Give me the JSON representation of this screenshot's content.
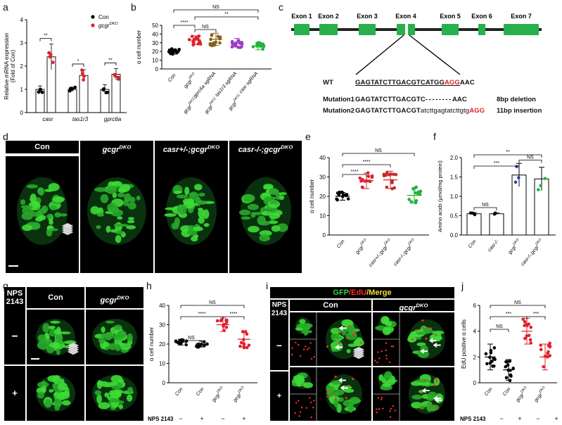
{
  "colors": {
    "con": "#000000",
    "gcgr": "#e0212b",
    "gprc6a": "#8b5e1a",
    "tas1r3": "#9b3cc4",
    "casr": "#22b33a",
    "blue": "#2b3fb0",
    "exon": "#27b04b"
  },
  "panel_a": {
    "letter": "a",
    "ylabel": "Relative mRNA expression\n(Fold of Con)",
    "legend": [
      {
        "label": "Con"
      },
      {
        "label": "gcgr",
        "sup": "DKO"
      }
    ],
    "sig": [
      "**",
      "*",
      "**"
    ],
    "chart_data": {
      "type": "bar",
      "categories": [
        "casr",
        "tas1r3",
        "gprc6a"
      ],
      "series": [
        {
          "name": "Con",
          "values": [
            1.0,
            1.0,
            1.0
          ],
          "errors": [
            0.15,
            0.1,
            0.2
          ]
        },
        {
          "name": "gcgrDKO",
          "values": [
            2.4,
            1.6,
            1.65
          ],
          "errors": [
            0.55,
            0.25,
            0.25
          ]
        }
      ],
      "ylim": [
        0,
        4
      ],
      "yticks": [
        0,
        1,
        2,
        3,
        4
      ]
    }
  },
  "panel_b": {
    "letter": "b",
    "ylabel": "α cell number",
    "sig": [
      "****",
      "NS",
      "NS",
      "**"
    ],
    "xlabels": [
      {
        "parts": [
          [
            "Con",
            ""
          ]
        ]
      },
      {
        "parts": [
          [
            "gcgr",
            ""
          ],
          [
            "DKO",
            "sup"
          ]
        ]
      },
      {
        "parts": [
          [
            "gcgr",
            ""
          ],
          [
            "DKO",
            "sup"
          ],
          [
            ";gprc6a sgRNA",
            ""
          ]
        ]
      },
      {
        "parts": [
          [
            "gcgr",
            ""
          ],
          [
            "DKO",
            "sup"
          ],
          [
            "; tas1r3 sgRNA",
            ""
          ]
        ]
      },
      {
        "parts": [
          [
            "gcgr",
            ""
          ],
          [
            "DKO",
            "sup"
          ],
          [
            "; casr sgRNA",
            ""
          ]
        ]
      }
    ],
    "chart_data": {
      "type": "scatter",
      "groups": [
        "Con",
        "gcgrDKO",
        "gcgrDKO;gprc6a sgRNA",
        "gcgrDKO; tas1r3 sgRNA",
        "gcgrDKO; casr sgRNA"
      ],
      "means": [
        20,
        33,
        34,
        30,
        26
      ],
      "sd": [
        3,
        5,
        7,
        5,
        4
      ],
      "ylim": [
        0,
        50
      ],
      "yticks": [
        0,
        10,
        20,
        30,
        40,
        50
      ]
    }
  },
  "panel_c": {
    "letter": "c",
    "exons": [
      "Exon 1",
      "Exon 2",
      "Exon 3",
      "Exon 4",
      "Exon 5",
      "Exon 6",
      "Exon 7"
    ],
    "wt_label": "WT",
    "wt_seq_main": "GAGTATCTTGACGTCATGG",
    "wt_seq_pam": "AGG",
    "wt_seq_tail": "AAC",
    "m1_label": "Mutation1",
    "m1_seq": "GAGTATCTTGACGTC",
    "m1_dash": "--------",
    "m1_tail": "AAC",
    "m1_note": "8bp deletion",
    "m2_label": "Mutation2",
    "m2_seq": "GAGTATCTTGACGT",
    "m2_lower": "atcttgagtatcttgtg",
    "m2_pam": "AGG",
    "m2_note": "11bp insertion"
  },
  "panel_d": {
    "letter": "d",
    "headers": [
      {
        "parts": [
          [
            "Con",
            ""
          ]
        ]
      },
      {
        "parts": [
          [
            "gcgr",
            "i"
          ],
          [
            "DKO",
            "sup"
          ]
        ]
      },
      {
        "parts": [
          [
            "casr+/-;gcgr",
            "i"
          ],
          [
            "DKO",
            "sup"
          ]
        ]
      },
      {
        "parts": [
          [
            "casr-/-;gcgr",
            "i"
          ],
          [
            "DKO",
            "sup"
          ]
        ]
      }
    ]
  },
  "panel_e": {
    "letter": "e",
    "ylabel": "α cell number",
    "sig": [
      "****",
      "****",
      "NS"
    ],
    "xlabels": [
      {
        "parts": [
          [
            "Con",
            ""
          ]
        ]
      },
      {
        "parts": [
          [
            "gcgr",
            ""
          ],
          [
            "DKO",
            "sup"
          ]
        ]
      },
      {
        "parts": [
          [
            "casr+/-;gcgr",
            ""
          ],
          [
            "DKO",
            "sup"
          ]
        ]
      },
      {
        "parts": [
          [
            "casr-/-;gcgr",
            ""
          ],
          [
            "DKO",
            "sup"
          ]
        ]
      }
    ],
    "chart_data": {
      "type": "scatter",
      "groups": [
        "Con",
        "gcgrDKO",
        "casr+/-;gcgrDKO",
        "casr-/-;gcgrDKO"
      ],
      "means": [
        20,
        28,
        28.5,
        20.5
      ],
      "sd": [
        2,
        4,
        4.5,
        4
      ],
      "ylim": [
        0,
        40
      ],
      "yticks": [
        0,
        10,
        20,
        30,
        40
      ]
    }
  },
  "panel_f": {
    "letter": "f",
    "ylabel": "Amino acids (μmol/mg protein)",
    "sig": [
      "***",
      "**",
      "NS",
      "NS"
    ],
    "xlabels": [
      {
        "parts": [
          [
            "Con",
            ""
          ]
        ]
      },
      {
        "parts": [
          [
            "casr-/-",
            ""
          ]
        ]
      },
      {
        "parts": [
          [
            "gcgr",
            ""
          ],
          [
            "DKO",
            "sup"
          ]
        ]
      },
      {
        "parts": [
          [
            "casr-/-;gcgr",
            ""
          ],
          [
            "DKO",
            "sup"
          ]
        ]
      }
    ],
    "chart_data": {
      "type": "bar",
      "categories": [
        "Con",
        "casr-/-",
        "gcgrDKO",
        "casr-/-;gcgrDKO"
      ],
      "values": [
        0.55,
        0.55,
        1.55,
        1.45
      ],
      "errors": [
        0.03,
        0.02,
        0.3,
        0.3
      ],
      "ylim": [
        0,
        2.0
      ],
      "yticks": [
        0,
        0.5,
        1.0,
        1.5,
        2.0
      ]
    }
  },
  "panel_g": {
    "letter": "g",
    "drug": "NPS\n2143",
    "headers": [
      {
        "parts": [
          [
            "Con",
            ""
          ]
        ]
      },
      {
        "parts": [
          [
            "gcgr",
            "i"
          ],
          [
            "DKO",
            "sup"
          ]
        ]
      }
    ],
    "rows": [
      "−",
      "+"
    ]
  },
  "panel_h": {
    "letter": "h",
    "ylabel": "α cell number",
    "sig": [
      "NS",
      "****",
      "****",
      "NS"
    ],
    "drug_label": "NPS 2143",
    "drug_signs": [
      "−",
      "+",
      "−",
      "+"
    ],
    "xlabels": [
      {
        "parts": [
          [
            "Con",
            ""
          ]
        ]
      },
      {
        "parts": [
          [
            "Con",
            ""
          ]
        ]
      },
      {
        "parts": [
          [
            "gcgr",
            ""
          ],
          [
            "DKO",
            "sup"
          ]
        ]
      },
      {
        "parts": [
          [
            "gcgr",
            ""
          ],
          [
            "DKO",
            "sup"
          ]
        ]
      }
    ],
    "chart_data": {
      "type": "scatter",
      "groups": [
        "Con −",
        "Con +",
        "gcgrDKO −",
        "gcgrDKO +"
      ],
      "means": [
        21,
        20,
        30,
        22.5
      ],
      "sd": [
        1.5,
        1.5,
        3.5,
        4
      ],
      "ylim": [
        0,
        40
      ],
      "yticks": [
        0,
        10,
        20,
        30,
        40
      ]
    }
  },
  "panel_i": {
    "letter": "i",
    "title_gfp": "GFP",
    "title_edu": "/EdU",
    "title_merge": "/Merge",
    "drug": "NPS\n2143",
    "headers": [
      {
        "parts": [
          [
            "Con",
            ""
          ]
        ]
      },
      {
        "parts": [
          [
            "gcgr",
            "i"
          ],
          [
            "DKO",
            "sup"
          ]
        ]
      }
    ],
    "rows": [
      "−",
      "+"
    ]
  },
  "panel_j": {
    "letter": "j",
    "ylabel": "EdU positive α cells",
    "sig": [
      "NS",
      "***",
      "***",
      "NS"
    ],
    "drug_label": "NPS 2143",
    "drug_signs": [
      "−",
      "+",
      "−",
      "+"
    ],
    "xlabels": [
      {
        "parts": [
          [
            "Con",
            ""
          ]
        ]
      },
      {
        "parts": [
          [
            "Con",
            ""
          ]
        ]
      },
      {
        "parts": [
          [
            "gcgr",
            ""
          ],
          [
            "DKO",
            "sup"
          ]
        ]
      },
      {
        "parts": [
          [
            "gcgr",
            ""
          ],
          [
            "DKO",
            "sup"
          ]
        ]
      }
    ],
    "chart_data": {
      "type": "scatter",
      "groups": [
        "Con −",
        "Con +",
        "gcgrDKO −",
        "gcgrDKO +"
      ],
      "means": [
        2,
        1,
        4,
        2
      ],
      "sd": [
        1,
        0.8,
        1,
        1
      ],
      "ylim": [
        0,
        6
      ],
      "yticks": [
        0,
        2,
        4,
        6
      ]
    }
  }
}
